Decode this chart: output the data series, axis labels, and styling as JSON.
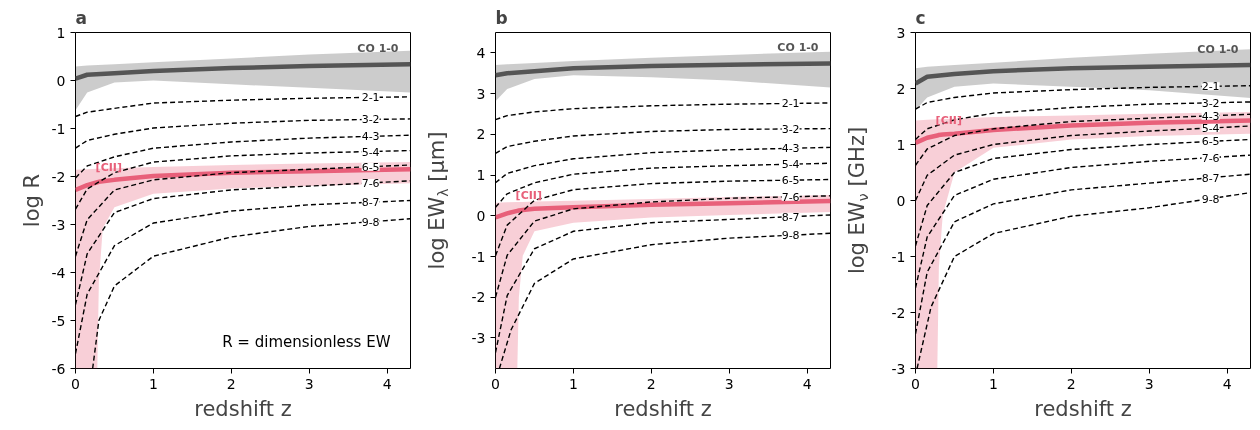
{
  "chart_data": [
    {
      "type": "line",
      "title": "a",
      "xlabel": "redshift z",
      "ylabel": "log R",
      "xlim": [
        0,
        4.3
      ],
      "xticks": [
        0,
        1,
        2,
        3,
        4
      ],
      "ylim": [
        -6,
        1
      ],
      "yticks": [
        -6,
        -5,
        -4,
        -3,
        -2,
        -1,
        0,
        1
      ],
      "annotations": [
        "R = dimensionless EW"
      ],
      "x": [
        0,
        0.15,
        0.5,
        1,
        2,
        3,
        4.3
      ],
      "series": [
        {
          "name": "CO 1-0",
          "color": "#555555",
          "line_style": "solid",
          "values": [
            0.04,
            0.12,
            0.15,
            0.2,
            0.26,
            0.3,
            0.34
          ],
          "lower": [
            -0.62,
            -0.25,
            -0.04,
            0,
            -0.08,
            -0.15,
            -0.25
          ],
          "upper": [
            0.29,
            0.31,
            0.34,
            0.38,
            0.46,
            0.54,
            0.62
          ]
        },
        {
          "name": "2-1",
          "color": "#000000",
          "line_style": "dashed",
          "values": [
            -0.75,
            -0.66,
            -0.58,
            -0.47,
            -0.41,
            -0.37,
            -0.34
          ]
        },
        {
          "name": "3-2",
          "color": "#000000",
          "line_style": "dashed",
          "values": [
            -1.41,
            -1.25,
            -1.12,
            -0.99,
            -0.89,
            -0.83,
            -0.8
          ]
        },
        {
          "name": "4-3",
          "color": "#000000",
          "line_style": "dashed",
          "values": [
            -2.03,
            -1.78,
            -1.59,
            -1.41,
            -1.28,
            -1.2,
            -1.14
          ]
        },
        {
          "name": "5-4",
          "color": "#000000",
          "line_style": "dashed",
          "values": [
            -2.68,
            -2.26,
            -1.92,
            -1.7,
            -1.57,
            -1.51,
            -1.46
          ]
        },
        {
          "name": "6-5",
          "color": "#000000",
          "line_style": "dashed",
          "values": [
            -3.66,
            -2.9,
            -2.28,
            -2.07,
            -1.92,
            -1.85,
            -1.76
          ]
        },
        {
          "name": "7-6",
          "color": "#000000",
          "line_style": "dashed",
          "values": [
            -4.67,
            -3.61,
            -2.75,
            -2.46,
            -2.28,
            -2.2,
            -2.09
          ]
        },
        {
          "name": "8-7",
          "color": "#000000",
          "line_style": "dashed",
          "values": [
            -5.69,
            -4.45,
            -3.44,
            -2.97,
            -2.72,
            -2.59,
            -2.5
          ]
        },
        {
          "name": "9-8",
          "color": "#000000",
          "line_style": "dashed",
          "x": [
            0.22,
            0.3,
            0.5,
            1,
            2,
            3,
            4.3
          ],
          "values": [
            -6,
            -5.0,
            -4.28,
            -3.66,
            -3.26,
            -3.04,
            -2.88
          ]
        },
        {
          "name": "[CII]",
          "color": "#e8607a",
          "line_style": "solid",
          "x": [
            0,
            0.15,
            0.28,
            0.3,
            0.35,
            0.5,
            1,
            2,
            3,
            4.3
          ],
          "values": [
            -2.28,
            -2.18,
            -2.12,
            -2.11,
            -2.1,
            -2.07,
            -1.99,
            -1.92,
            -1.89,
            -1.85
          ],
          "lower": [
            -6,
            -6,
            -6,
            -4.2,
            -3.08,
            -2.64,
            -2.36,
            -2.25,
            -2.2,
            -2.14
          ],
          "upper": [
            -1.86,
            -1.85,
            -1.84,
            -1.84,
            -1.84,
            -1.83,
            -1.8,
            -1.76,
            -1.73,
            -1.7
          ]
        }
      ]
    },
    {
      "type": "line",
      "title": "b",
      "xlabel": "redshift z",
      "ylabel": "log EW$_{λ}$ [μm]",
      "xlim": [
        0,
        4.3
      ],
      "xticks": [
        0,
        1,
        2,
        3,
        4
      ],
      "ylim": [
        -3.75,
        4.5
      ],
      "yticks": [
        -3,
        -2,
        -1,
        0,
        1,
        2,
        3,
        4
      ],
      "x": [
        0,
        0.15,
        0.5,
        1,
        2,
        3,
        4.3
      ],
      "series": [
        {
          "name": "CO 1-0",
          "color": "#555555",
          "line_style": "solid",
          "values": [
            3.45,
            3.5,
            3.55,
            3.62,
            3.68,
            3.71,
            3.74
          ],
          "lower": [
            2.81,
            3.11,
            3.36,
            3.45,
            3.4,
            3.32,
            3.15
          ],
          "upper": [
            3.7,
            3.72,
            3.75,
            3.8,
            3.88,
            3.95,
            4.03
          ]
        },
        {
          "name": "2-1",
          "color": "#000000",
          "line_style": "dashed",
          "values": [
            2.36,
            2.46,
            2.55,
            2.63,
            2.7,
            2.74,
            2.77
          ]
        },
        {
          "name": "3-2",
          "color": "#000000",
          "line_style": "dashed",
          "values": [
            1.53,
            1.7,
            1.83,
            1.96,
            2.07,
            2.12,
            2.14
          ]
        },
        {
          "name": "4-3",
          "color": "#000000",
          "line_style": "dashed",
          "values": [
            0.81,
            1.04,
            1.23,
            1.4,
            1.55,
            1.62,
            1.68
          ]
        },
        {
          "name": "5-4",
          "color": "#000000",
          "line_style": "dashed",
          "values": [
            0.21,
            0.54,
            0.81,
            1.02,
            1.17,
            1.23,
            1.29
          ]
        },
        {
          "name": "6-5",
          "color": "#000000",
          "line_style": "dashed",
          "values": [
            -0.98,
            -0.23,
            0.38,
            0.64,
            0.79,
            0.85,
            0.89
          ]
        },
        {
          "name": "7-6",
          "color": "#000000",
          "line_style": "dashed",
          "values": [
            -2.0,
            -0.97,
            -0.13,
            0.17,
            0.34,
            0.43,
            0.49
          ]
        },
        {
          "name": "8-7",
          "color": "#000000",
          "line_style": "dashed",
          "values": [
            -3.36,
            -1.96,
            -0.81,
            -0.38,
            -0.17,
            -0.09,
            0.02
          ]
        },
        {
          "name": "9-8",
          "color": "#000000",
          "line_style": "dashed",
          "x": [
            0.05,
            0.2,
            0.5,
            1,
            2,
            3,
            4.3
          ],
          "values": [
            -3.75,
            -2.8,
            -1.66,
            -1.06,
            -0.71,
            -0.55,
            -0.43
          ]
        },
        {
          "name": "[CII]",
          "color": "#e8607a",
          "line_style": "solid",
          "x": [
            0,
            0.15,
            0.28,
            0.3,
            0.35,
            0.5,
            1,
            2,
            3,
            4.3
          ],
          "values": [
            -0.04,
            0.06,
            0.12,
            0.13,
            0.14,
            0.17,
            0.21,
            0.27,
            0.31,
            0.36
          ],
          "lower": [
            -3.75,
            -3.75,
            -3.75,
            -2.0,
            -0.98,
            -0.38,
            -0.17,
            -0.04,
            0.02,
            0.09
          ],
          "upper": [
            0.32,
            0.33,
            0.34,
            0.34,
            0.34,
            0.35,
            0.37,
            0.41,
            0.46,
            0.51
          ]
        }
      ]
    },
    {
      "type": "line",
      "title": "c",
      "xlabel": "redshift z",
      "ylabel": "log EW$_{ν}$ [GHz]",
      "xlim": [
        0,
        4.3
      ],
      "xticks": [
        0,
        1,
        2,
        3,
        4
      ],
      "ylim": [
        -3,
        3
      ],
      "yticks": [
        -3,
        -2,
        -1,
        0,
        1,
        2,
        3
      ],
      "x": [
        0,
        0.15,
        0.5,
        1,
        2,
        3,
        4.3
      ],
      "series": [
        {
          "name": "CO 1-0",
          "color": "#555555",
          "line_style": "solid",
          "values": [
            2.09,
            2.21,
            2.26,
            2.31,
            2.36,
            2.39,
            2.42
          ],
          "lower": [
            1.61,
            1.84,
            2.03,
            2.09,
            2.03,
            1.97,
            1.83
          ],
          "upper": [
            2.36,
            2.39,
            2.42,
            2.46,
            2.55,
            2.62,
            2.7
          ]
        },
        {
          "name": "2-1",
          "color": "#000000",
          "line_style": "dashed",
          "values": [
            1.63,
            1.75,
            1.84,
            1.92,
            1.98,
            2.02,
            2.05
          ]
        },
        {
          "name": "3-2",
          "color": "#000000",
          "line_style": "dashed",
          "values": [
            1.09,
            1.28,
            1.44,
            1.56,
            1.66,
            1.72,
            1.76
          ]
        },
        {
          "name": "4-3",
          "color": "#000000",
          "line_style": "dashed",
          "values": [
            0.63,
            0.92,
            1.16,
            1.28,
            1.41,
            1.47,
            1.54
          ]
        },
        {
          "name": "5-4",
          "color": "#000000",
          "line_style": "dashed",
          "values": [
            0.0,
            0.45,
            0.81,
            1.0,
            1.16,
            1.24,
            1.33
          ]
        },
        {
          "name": "6-5",
          "color": "#000000",
          "line_style": "dashed",
          "values": [
            -0.81,
            -0.09,
            0.5,
            0.75,
            0.91,
            1.0,
            1.09
          ]
        },
        {
          "name": "7-6",
          "color": "#000000",
          "line_style": "dashed",
          "values": [
            -1.56,
            -0.65,
            0.09,
            0.38,
            0.59,
            0.7,
            0.81
          ]
        },
        {
          "name": "8-7",
          "color": "#000000",
          "line_style": "dashed",
          "values": [
            -2.38,
            -1.28,
            -0.38,
            -0.06,
            0.19,
            0.31,
            0.47
          ]
        },
        {
          "name": "9-8",
          "color": "#000000",
          "line_style": "dashed",
          "x": [
            0.02,
            0.2,
            0.5,
            1,
            2,
            3,
            4.3
          ],
          "values": [
            -3,
            -1.9,
            -1.0,
            -0.59,
            -0.28,
            -0.13,
            0.14
          ]
        },
        {
          "name": "[CII]",
          "color": "#e8607a",
          "line_style": "solid",
          "x": [
            0,
            0.15,
            0.28,
            0.3,
            0.35,
            0.5,
            1,
            2,
            3,
            4.3
          ],
          "values": [
            1.03,
            1.12,
            1.16,
            1.17,
            1.18,
            1.19,
            1.26,
            1.34,
            1.39,
            1.43
          ],
          "lower": [
            -3,
            -3,
            -3,
            -1.2,
            -0.25,
            0.5,
            0.94,
            1.09,
            1.15,
            1.19
          ],
          "upper": [
            1.43,
            1.44,
            1.45,
            1.45,
            1.45,
            1.46,
            1.49,
            1.52,
            1.55,
            1.58
          ]
        }
      ]
    }
  ]
}
